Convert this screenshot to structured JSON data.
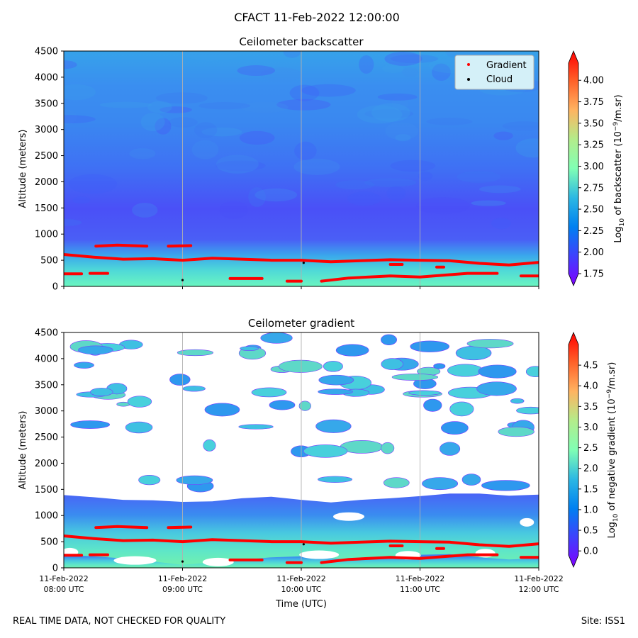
{
  "suptitle": "CFACT 11-Feb-2022 12:00:00",
  "footer": {
    "left": "REAL TIME DATA, NOT CHECKED FOR QUALITY",
    "right": "Site: ISS1"
  },
  "chart_data": [
    {
      "type": "heatmap",
      "title": "Ceilometer backscatter",
      "ylabel": "Altitude (meters)",
      "ylim": [
        0,
        4500
      ],
      "yticks": [
        0,
        500,
        1000,
        1500,
        2000,
        2500,
        3000,
        3500,
        4000,
        4500
      ],
      "xticks": [
        "08:00",
        "09:00",
        "10:00",
        "11:00",
        "12:00"
      ],
      "grid": "vertical",
      "colorbar": {
        "label_main": "Log",
        "label_sub": "10",
        "label_rest": " of backscatter (10",
        "label_sup": "−9",
        "label_end": "/m.sr)",
        "range": [
          1.75,
          4.2
        ],
        "ticks": [
          "1.75",
          "2.00",
          "2.25",
          "2.50",
          "2.75",
          "3.00",
          "3.25",
          "3.50",
          "3.75",
          "4.00"
        ],
        "colormap": "rainbow"
      },
      "legend": {
        "placement": "top-right",
        "items": [
          {
            "label": "Gradient",
            "color": "#ff0000"
          },
          {
            "label": "Cloud",
            "color": "#000000"
          }
        ]
      },
      "field_profile": [
        {
          "alt": 0,
          "value": 2.85
        },
        {
          "alt": 200,
          "value": 2.75
        },
        {
          "alt": 400,
          "value": 2.6
        },
        {
          "alt": 600,
          "value": 2.2
        },
        {
          "alt": 1000,
          "value": 1.95
        },
        {
          "alt": 1500,
          "value": 1.95
        },
        {
          "alt": 2000,
          "value": 2.05
        },
        {
          "alt": 2500,
          "value": 2.2
        },
        {
          "alt": 3000,
          "value": 2.3
        },
        {
          "alt": 3500,
          "value": 2.3
        },
        {
          "alt": 4000,
          "value": 2.35
        },
        {
          "alt": 4500,
          "value": 2.4
        }
      ]
    },
    {
      "type": "heatmap",
      "title": "Ceilometer gradient",
      "ylabel": "Altitude (meters)",
      "xlabel": "Time (UTC)",
      "ylim": [
        0,
        4500
      ],
      "yticks": [
        0,
        500,
        1000,
        1500,
        2000,
        2500,
        3000,
        3500,
        4000,
        4500
      ],
      "xticks": [
        "11-Feb-2022\n08:00 UTC",
        "11-Feb-2022\n09:00 UTC",
        "11-Feb-2022\n10:00 UTC",
        "11-Feb-2022\n11:00 UTC",
        "11-Feb-2022\n12:00 UTC"
      ],
      "grid": "vertical",
      "colorbar": {
        "label_main": "Log",
        "label_sub": "10",
        "label_rest": " of negative gradient (10",
        "label_sup": "−9",
        "label_end": "/m.sr)",
        "range": [
          -0.1,
          5.0
        ],
        "ticks": [
          "0.0",
          "0.5",
          "1.0",
          "1.5",
          "2.0",
          "2.5",
          "3.0",
          "3.5",
          "4.0",
          "4.5"
        ],
        "colormap": "rainbow"
      },
      "layers": [
        {
          "name": "boundary layer",
          "alt_range": [
            0,
            1400
          ],
          "value_range": [
            0.6,
            2.0
          ]
        },
        {
          "name": "upper patches",
          "alt_range": [
            2000,
            4450
          ],
          "value_range": [
            1.0,
            1.7
          ]
        }
      ]
    }
  ],
  "gradient_lines": [
    {
      "x": [
        8.0,
        8.25,
        8.5,
        8.75,
        9.0,
        9.25,
        9.5,
        9.75,
        10.0,
        10.25,
        10.5,
        10.75,
        11.0,
        11.25,
        11.5,
        11.75,
        12.0
      ],
      "y": [
        610,
        560,
        520,
        530,
        500,
        540,
        520,
        500,
        500,
        470,
        490,
        510,
        500,
        490,
        440,
        410,
        460
      ]
    },
    {
      "x": [
        8.27,
        8.45,
        8.7
      ],
      "y": [
        770,
        790,
        770
      ]
    },
    {
      "x": [
        8.88,
        9.07
      ],
      "y": [
        770,
        780
      ]
    },
    {
      "x": [
        8.0,
        8.15
      ],
      "y": [
        240,
        240
      ]
    },
    {
      "x": [
        8.22,
        8.37
      ],
      "y": [
        250,
        250
      ]
    },
    {
      "x": [
        9.4,
        9.67
      ],
      "y": [
        150,
        150
      ]
    },
    {
      "x": [
        9.88,
        10.0
      ],
      "y": [
        100,
        100
      ]
    },
    {
      "x": [
        10.17,
        10.4,
        10.75,
        11.0,
        11.4,
        11.65
      ],
      "y": [
        100,
        160,
        200,
        180,
        250,
        250
      ]
    },
    {
      "x": [
        11.85,
        12.0
      ],
      "y": [
        200,
        200
      ]
    },
    {
      "x": [
        10.75,
        10.85
      ],
      "y": [
        420,
        420
      ]
    },
    {
      "x": [
        11.14,
        11.2
      ],
      "y": [
        370,
        370
      ]
    }
  ],
  "cloud_points": [
    {
      "x": 9.0,
      "y": 120
    },
    {
      "x": 10.02,
      "y": 450
    }
  ]
}
